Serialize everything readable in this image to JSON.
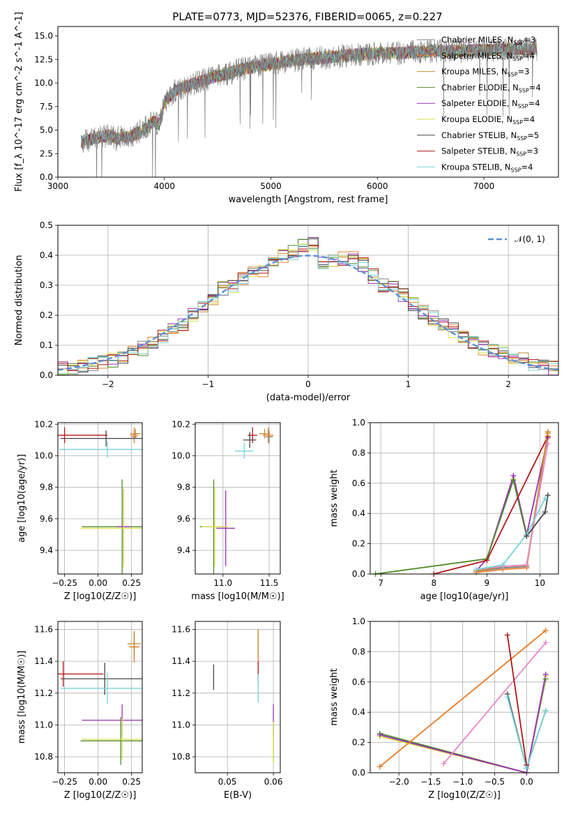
{
  "figure": {
    "title": "PLATE=0773, MJD=52376, FIBERID=0065, z=0.227"
  },
  "colors": {
    "spectrum": "#808080",
    "models": [
      "#808080",
      "#ed8132",
      "#c8892a",
      "#4f8a2f",
      "#9b2fb7",
      "#d7df46",
      "#444444",
      "#b0161a",
      "#74d3da"
    ],
    "normal_curve": "#5b8fd6",
    "grid": "#b0b0b0"
  },
  "models": [
    {
      "name": "Chabrier MILES",
      "nssp": "3",
      "color": "#808080",
      "sub": "SSP"
    },
    {
      "name": "Salpeter MILES",
      "nssp": "4",
      "color": "#ed8132",
      "sub": "SSP"
    },
    {
      "name": "Kroupa MILES",
      "nssp": "3",
      "color": "#c8892a",
      "sub": "SSP"
    },
    {
      "name": "Chabrier ELODIE",
      "nssp": "4",
      "color": "#4f8a2f",
      "sub": "SSP"
    },
    {
      "name": "Salpeter ELODIE",
      "nssp": "4",
      "color": "#9b2fb7",
      "sub": "SSP"
    },
    {
      "name": "Kroupa ELODIE",
      "nssp": "4",
      "color": "#d7df46",
      "sub": "SSP"
    },
    {
      "name": "Chabrier STELIB",
      "nssp": "5",
      "color": "#444444",
      "sub": "SSP"
    },
    {
      "name": "Salpeter STELIB",
      "nssp": "3",
      "color": "#b0161a",
      "sub": "SSP"
    },
    {
      "name": "Kroupa STELIB",
      "nssp": "4",
      "color": "#74d3da",
      "sub": "SSP"
    }
  ],
  "chart_data": [
    {
      "type": "line",
      "id": "spectrum",
      "title": "PLATE=0773, MJD=52376, FIBERID=0065, z=0.227",
      "xlabel": "wavelength [Angstrom, rest frame]",
      "ylabel": "Flux [f_λ 10^-17 erg cm^-2 s^-1 A^-1]",
      "xlim": [
        3000,
        7700
      ],
      "ylim": [
        0,
        16
      ],
      "xticks": [
        "3000",
        "4000",
        "5000",
        "6000",
        "7000"
      ],
      "yticks": [
        "0.0",
        "2.5",
        "5.0",
        "7.5",
        "10.0",
        "12.5",
        "15.0"
      ],
      "legend": "top-right",
      "x": [
        3220,
        3300,
        3400,
        3500,
        3550,
        3600,
        3650,
        3700,
        3800,
        3900,
        3950,
        4000,
        4100,
        4200,
        4300,
        4400,
        4500,
        4600,
        4700,
        4800,
        4900,
        5000,
        5100,
        5200,
        5300,
        5400,
        5500,
        5600,
        5700,
        5800,
        5900,
        6000,
        6100,
        6200,
        6300,
        6400,
        6500,
        6600,
        6700,
        6800,
        6900,
        7000,
        7100,
        7200,
        7300,
        7400
      ],
      "y": [
        3.8,
        4.0,
        4.3,
        4.4,
        4.0,
        4.5,
        4.2,
        4.4,
        5.0,
        6.0,
        5.5,
        8.0,
        9.2,
        9.6,
        10.0,
        10.4,
        10.8,
        11.0,
        11.4,
        11.6,
        11.8,
        12.0,
        12.2,
        12.4,
        12.5,
        12.6,
        12.7,
        12.8,
        12.9,
        13.0,
        13.1,
        13.2,
        13.2,
        13.2,
        13.3,
        13.3,
        13.4,
        13.4,
        13.4,
        13.4,
        13.5,
        13.5,
        13.5,
        13.6,
        13.6,
        13.6
      ]
    },
    {
      "type": "line",
      "id": "residuals",
      "xlabel": "(data-model)/error",
      "ylabel": "Normed distribution",
      "xlim": [
        -2.5,
        2.5
      ],
      "ylim": [
        0,
        0.5
      ],
      "xticks": [
        "−2",
        "−1",
        "0",
        "1",
        "2"
      ],
      "yticks": [
        "0.0",
        "0.1",
        "0.2",
        "0.3",
        "0.4",
        "0.5"
      ],
      "legend": "top-right",
      "normal_label": "𝒩(0, 1)",
      "bin_edges": [
        -2.5,
        -2.4,
        -2.3,
        -2.2,
        -2.1,
        -2.0,
        -1.9,
        -1.8,
        -1.7,
        -1.6,
        -1.5,
        -1.4,
        -1.3,
        -1.2,
        -1.1,
        -1.0,
        -0.9,
        -0.8,
        -0.7,
        -0.6,
        -0.5,
        -0.4,
        -0.3,
        -0.2,
        -0.1,
        0.0,
        0.1,
        0.2,
        0.3,
        0.4,
        0.5,
        0.6,
        0.7,
        0.8,
        0.9,
        1.0,
        1.1,
        1.2,
        1.3,
        1.4,
        1.5,
        1.6,
        1.7,
        1.8,
        1.9,
        2.0,
        2.1,
        2.2,
        2.3,
        2.4,
        2.5
      ],
      "hist_base": [
        0.02,
        0.025,
        0.03,
        0.04,
        0.045,
        0.05,
        0.06,
        0.08,
        0.09,
        0.11,
        0.13,
        0.15,
        0.17,
        0.2,
        0.23,
        0.25,
        0.29,
        0.3,
        0.32,
        0.34,
        0.35,
        0.38,
        0.4,
        0.41,
        0.43,
        0.44,
        0.37,
        0.38,
        0.39,
        0.39,
        0.37,
        0.33,
        0.3,
        0.29,
        0.27,
        0.24,
        0.21,
        0.19,
        0.17,
        0.15,
        0.13,
        0.11,
        0.09,
        0.08,
        0.07,
        0.06,
        0.05,
        0.04,
        0.03,
        0.025
      ]
    },
    {
      "type": "scatter",
      "id": "age_vs_Z",
      "xlabel": "Z [log10(Z/Z☉)]",
      "ylabel": "age  [log10(age/yr)]",
      "xlim": [
        -0.3,
        0.33
      ],
      "ylim": [
        9.25,
        10.21
      ],
      "xticks": [
        "−0.25",
        "0.00",
        "0.25"
      ],
      "yticks": [
        "9.4",
        "9.6",
        "9.8",
        "10.0",
        "10.2"
      ],
      "points": [
        {
          "x": 0.27,
          "y": 10.12,
          "xerr": 0.02,
          "yerr": 0.04,
          "c": "#808080"
        },
        {
          "x": 0.27,
          "y": 10.13,
          "xerr": 0.03,
          "yerr": 0.05,
          "c": "#ed8132"
        },
        {
          "x": 0.28,
          "y": 10.14,
          "xerr": 0.04,
          "yerr": 0.03,
          "c": "#c8892a"
        },
        {
          "x": 0.18,
          "y": 9.55,
          "xerr": 0.3,
          "yerr": 0.3,
          "c": "#4f8a2f"
        },
        {
          "x": 0.19,
          "y": 9.55,
          "xerr": 0.05,
          "yerr": 0.24,
          "c": "#9b2fb7"
        },
        {
          "x": 0.19,
          "y": 9.54,
          "xerr": 0.32,
          "yerr": 0.25,
          "c": "#d7df46"
        },
        {
          "x": 0.06,
          "y": 10.11,
          "xerr": 0.34,
          "yerr": 0.05,
          "c": "#444444"
        },
        {
          "x": -0.25,
          "y": 10.13,
          "xerr": 0.32,
          "yerr": 0.05,
          "c": "#b0161a"
        },
        {
          "x": 0.07,
          "y": 10.04,
          "xerr": 0.36,
          "yerr": 0.05,
          "c": "#74d3da"
        }
      ]
    },
    {
      "type": "scatter",
      "id": "age_vs_mass",
      "xlabel": "mass [log10(M/M☉)]",
      "ylabel": "",
      "xlim": [
        10.7,
        11.62
      ],
      "ylim": [
        9.25,
        10.21
      ],
      "xticks": [
        "11.0",
        "11.5"
      ],
      "yticks": [
        "9.4",
        "9.6",
        "9.8",
        "10.0",
        "10.2"
      ],
      "points": [
        {
          "x": 11.5,
          "y": 10.12,
          "xerr": 0.04,
          "yerr": 0.04,
          "c": "#808080"
        },
        {
          "x": 11.49,
          "y": 10.13,
          "xerr": 0.06,
          "yerr": 0.05,
          "c": "#ed8132"
        },
        {
          "x": 11.45,
          "y": 10.14,
          "xerr": 0.06,
          "yerr": 0.03,
          "c": "#c8892a"
        },
        {
          "x": 10.9,
          "y": 9.55,
          "xerr": 0.15,
          "yerr": 0.3,
          "c": "#4f8a2f"
        },
        {
          "x": 11.03,
          "y": 9.54,
          "xerr": 0.1,
          "yerr": 0.24,
          "c": "#9b2fb7"
        },
        {
          "x": 10.91,
          "y": 9.55,
          "xerr": 0.14,
          "yerr": 0.25,
          "c": "#d7df46"
        },
        {
          "x": 11.29,
          "y": 10.1,
          "xerr": 0.07,
          "yerr": 0.05,
          "c": "#444444"
        },
        {
          "x": 11.32,
          "y": 10.13,
          "xerr": 0.05,
          "yerr": 0.05,
          "c": "#b0161a"
        },
        {
          "x": 11.23,
          "y": 10.03,
          "xerr": 0.1,
          "yerr": 0.05,
          "c": "#74d3da"
        }
      ]
    },
    {
      "type": "line",
      "id": "mass_weight_vs_age",
      "xlabel": "age  [log10(age/yr)]",
      "ylabel": "mass weight",
      "xlim": [
        6.8,
        10.35
      ],
      "ylim": [
        0,
        1
      ],
      "xticks": [
        "7",
        "8",
        "9",
        "10"
      ],
      "yticks": [
        "0.0",
        "0.2",
        "0.4",
        "0.6",
        "0.8",
        "1.0"
      ],
      "series": [
        {
          "c": "#d7df46",
          "x": [
            6.9,
            9.0,
            9.5,
            9.75,
            10.15
          ],
          "y": [
            0.0,
            0.1,
            0.63,
            0.26,
            0.9
          ]
        },
        {
          "c": "#9b2fb7",
          "x": [
            8.8,
            9.0,
            9.5,
            9.75,
            10.15
          ],
          "y": [
            0.02,
            0.1,
            0.65,
            0.26,
            0.9
          ]
        },
        {
          "c": "#4f8a2f",
          "x": [
            6.9,
            9.0,
            9.5,
            9.75
          ],
          "y": [
            0.0,
            0.1,
            0.62,
            0.25
          ]
        },
        {
          "c": "#b0161a",
          "x": [
            8.0,
            9.0,
            10.15
          ],
          "y": [
            0.0,
            0.09,
            0.91
          ]
        },
        {
          "c": "#808080",
          "x": [
            8.8,
            9.3,
            9.75,
            10.15
          ],
          "y": [
            0.02,
            0.04,
            0.05,
            0.94
          ]
        },
        {
          "c": "#ed8132",
          "x": [
            8.8,
            9.3,
            9.75,
            10.15
          ],
          "y": [
            0.01,
            0.03,
            0.04,
            0.94
          ]
        },
        {
          "c": "#c8892a",
          "x": [
            8.8,
            9.3,
            9.75,
            10.15
          ],
          "y": [
            0.02,
            0.05,
            0.06,
            0.93
          ]
        },
        {
          "c": "#e887c7",
          "x": [
            8.8,
            9.3,
            9.75,
            10.15
          ],
          "y": [
            0.03,
            0.05,
            0.06,
            0.86
          ]
        },
        {
          "c": "#74d3da",
          "x": [
            8.8,
            9.3,
            9.75,
            10.1
          ],
          "y": [
            0.03,
            0.06,
            0.26,
            0.5
          ]
        },
        {
          "c": "#444444",
          "x": [
            9.75,
            10.1,
            10.15
          ],
          "y": [
            0.25,
            0.41,
            0.52
          ]
        }
      ]
    },
    {
      "type": "scatter",
      "id": "mass_vs_Z",
      "xlabel": "Z [log10(Z/Z☉)]",
      "ylabel": "mass [log10(M/M☉)]",
      "xlim": [
        -0.3,
        0.33
      ],
      "ylim": [
        10.7,
        11.65
      ],
      "xticks": [
        "−0.25",
        "0.00",
        "0.25"
      ],
      "yticks": [
        "10.8",
        "11.0",
        "11.2",
        "11.4",
        "11.6"
      ],
      "points": [
        {
          "x": 0.27,
          "y": 11.49,
          "xerr": 0.03,
          "yerr": 0.08,
          "c": "#808080"
        },
        {
          "x": 0.27,
          "y": 11.49,
          "xerr": 0.04,
          "yerr": 0.1,
          "c": "#ed8132"
        },
        {
          "x": 0.27,
          "y": 11.51,
          "xerr": 0.05,
          "yerr": 0.08,
          "c": "#c8892a"
        },
        {
          "x": 0.17,
          "y": 10.9,
          "xerr": 0.3,
          "yerr": 0.15,
          "c": "#4f8a2f"
        },
        {
          "x": 0.18,
          "y": 11.03,
          "xerr": 0.3,
          "yerr": 0.1,
          "c": "#9b2fb7"
        },
        {
          "x": 0.18,
          "y": 10.91,
          "xerr": 0.3,
          "yerr": 0.13,
          "c": "#d7df46"
        },
        {
          "x": 0.05,
          "y": 11.29,
          "xerr": 0.33,
          "yerr": 0.1,
          "c": "#444444"
        },
        {
          "x": -0.26,
          "y": 11.32,
          "xerr": 0.3,
          "yerr": 0.08,
          "c": "#b0161a"
        },
        {
          "x": 0.07,
          "y": 11.23,
          "xerr": 0.35,
          "yerr": 0.1,
          "c": "#74d3da"
        }
      ]
    },
    {
      "type": "scatter",
      "id": "mass_vs_EBV",
      "xlabel": "E(B-V)",
      "ylabel": "",
      "xlim": [
        0.043,
        0.0615
      ],
      "ylim": [
        10.7,
        11.65
      ],
      "xticks": [
        "0.05",
        "0.06"
      ],
      "yticks": [
        "10.8",
        "11.0",
        "11.2",
        "11.4",
        "11.6"
      ],
      "points": [
        {
          "x": 0.0567,
          "y": 11.5,
          "xerr": 0.0,
          "yerr": 0.08,
          "c": "#808080"
        },
        {
          "x": 0.0567,
          "y": 11.49,
          "xerr": 0.0,
          "yerr": 0.11,
          "c": "#ed8132"
        },
        {
          "x": 0.0567,
          "y": 11.52,
          "xerr": 0.0,
          "yerr": 0.08,
          "c": "#c8892a"
        },
        {
          "x": 0.06,
          "y": 10.89,
          "xerr": 0.0,
          "yerr": 0.12,
          "c": "#4f8a2f"
        },
        {
          "x": 0.06,
          "y": 11.03,
          "xerr": 0.0,
          "yerr": 0.1,
          "c": "#9b2fb7"
        },
        {
          "x": 0.06,
          "y": 10.89,
          "xerr": 0.0,
          "yerr": 0.13,
          "c": "#d7df46"
        },
        {
          "x": 0.047,
          "y": 11.3,
          "xerr": 0.0,
          "yerr": 0.08,
          "c": "#444444"
        },
        {
          "x": 0.0567,
          "y": 11.33,
          "xerr": 0.0,
          "yerr": 0.07,
          "c": "#b0161a"
        },
        {
          "x": 0.0567,
          "y": 11.23,
          "xerr": 0.0,
          "yerr": 0.09,
          "c": "#74d3da"
        }
      ]
    },
    {
      "type": "line",
      "id": "mass_weight_vs_Z",
      "xlabel": "Z [log10(Z/Z☉)]",
      "ylabel": "mass weight",
      "xlim": [
        -2.45,
        0.5
      ],
      "ylim": [
        0,
        1
      ],
      "xticks": [
        "−2.0",
        "−1.5",
        "−1.0",
        "−0.5",
        "0.0"
      ],
      "yticks": [
        "0.0",
        "0.2",
        "0.4",
        "0.6",
        "0.8",
        "1.0"
      ],
      "series": [
        {
          "c": "#4f8a2f",
          "x": [
            -2.3,
            0.0,
            0.3
          ],
          "y": [
            0.26,
            0.0,
            0.62
          ]
        },
        {
          "c": "#d7df46",
          "x": [
            -2.3,
            0.0,
            0.3
          ],
          "y": [
            0.24,
            0.0,
            0.64
          ]
        },
        {
          "c": "#9b2fb7",
          "x": [
            -2.3,
            0.0,
            0.3
          ],
          "y": [
            0.25,
            0.0,
            0.65
          ]
        },
        {
          "c": "#c8892a",
          "x": [
            -2.3,
            0.3
          ],
          "y": [
            0.04,
            0.94
          ]
        },
        {
          "c": "#ed8132",
          "x": [
            -2.3,
            0.3
          ],
          "y": [
            0.04,
            0.94
          ]
        },
        {
          "c": "#e887c7",
          "x": [
            -1.3,
            0.3
          ],
          "y": [
            0.06,
            0.86
          ]
        },
        {
          "c": "#b0161a",
          "x": [
            -0.3,
            0.0
          ],
          "y": [
            0.91,
            0.05
          ]
        },
        {
          "c": "#444444",
          "x": [
            -0.3,
            0.0,
            0.3
          ],
          "y": [
            0.52,
            0.03,
            0.41
          ]
        },
        {
          "c": "#74d3da",
          "x": [
            -0.3,
            0.0,
            0.3
          ],
          "y": [
            0.5,
            0.03,
            0.41
          ]
        }
      ]
    }
  ]
}
